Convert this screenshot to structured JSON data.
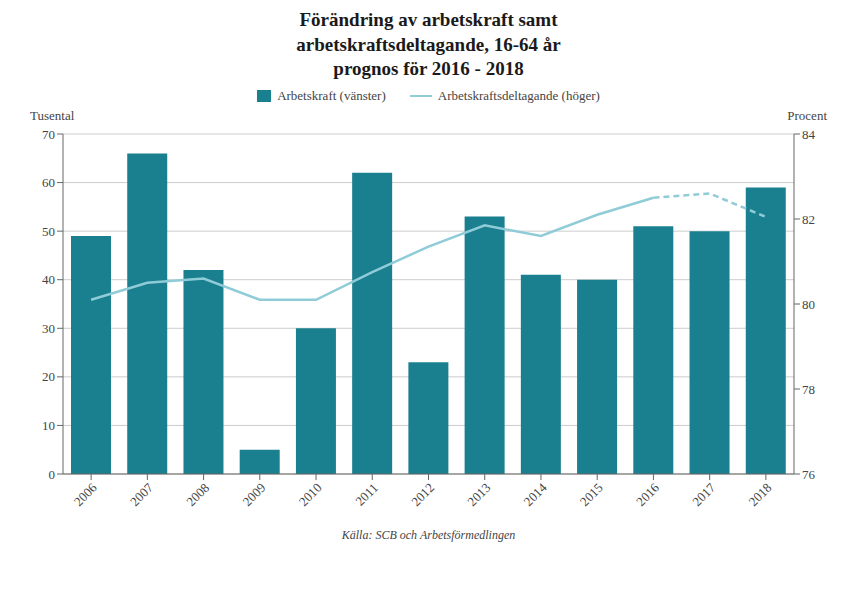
{
  "chart_data": {
    "type": "bar",
    "title": "Förändring av arbetskraft samt\narbetskraftsdeltagande, 16-64 år\nprognos för 2016 - 2018",
    "categories": [
      "2006",
      "2007",
      "2008",
      "2009",
      "2010",
      "2011",
      "2012",
      "2013",
      "2014",
      "2015",
      "2016",
      "2017",
      "2018"
    ],
    "ylabel": "Tusental",
    "y2label": "Procent",
    "ylim": [
      0,
      70
    ],
    "yticks": [
      0,
      10,
      20,
      30,
      40,
      50,
      60,
      70
    ],
    "y2lim": [
      76,
      84
    ],
    "y2ticks": [
      76,
      78,
      80,
      82,
      84
    ],
    "grid": true,
    "annotations": [
      "Källa: SCB och Arbetsförmedlingen"
    ],
    "series": [
      {
        "name": "Arbetskraft (vänster)",
        "type": "bar",
        "color": "#1a7f8e",
        "values": [
          49,
          66,
          42,
          5,
          30,
          62,
          23,
          53,
          41,
          40,
          51,
          50,
          59
        ]
      },
      {
        "name": "Arbetskraftsdeltagande (höger)",
        "type": "line",
        "axis": "y2",
        "color": "#90ccd8",
        "line_style": "solid",
        "values": [
          80.1,
          80.5,
          80.6,
          80.1,
          80.1,
          80.75,
          81.35,
          81.85,
          81.6,
          82.1,
          82.5,
          null,
          null
        ]
      },
      {
        "name": "Arbetskraftsdeltagande (höger)",
        "type": "line",
        "axis": "y2",
        "color": "#90ccd8",
        "line_style": "dashed",
        "values": [
          null,
          null,
          null,
          null,
          null,
          null,
          null,
          null,
          null,
          null,
          82.5,
          82.6,
          82.05
        ]
      }
    ]
  }
}
